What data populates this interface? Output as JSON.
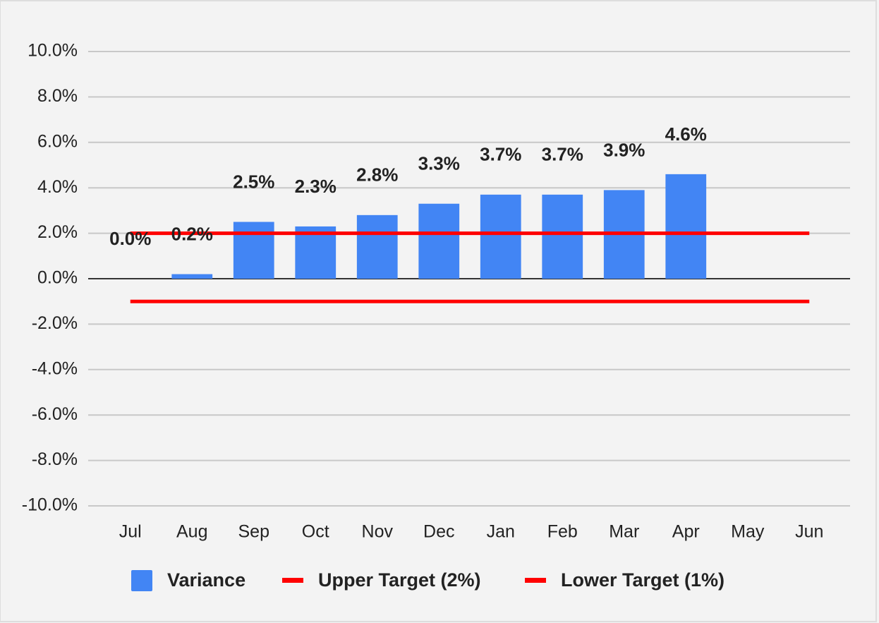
{
  "chart_data": {
    "type": "bar",
    "categories": [
      "Jul",
      "Aug",
      "Sep",
      "Oct",
      "Nov",
      "Dec",
      "Jan",
      "Feb",
      "Mar",
      "Apr",
      "May",
      "Jun"
    ],
    "series": [
      {
        "name": "Variance",
        "type": "bar",
        "color": "#4285f4",
        "values": [
          0.0,
          0.2,
          2.5,
          2.3,
          2.8,
          3.3,
          3.7,
          3.7,
          3.9,
          4.6,
          null,
          null
        ],
        "value_labels": [
          "0.0%",
          "0.2%",
          "2.5%",
          "2.3%",
          "2.8%",
          "3.3%",
          "3.7%",
          "3.7%",
          "3.9%",
          "4.6%",
          null,
          null
        ]
      },
      {
        "name": "Upper Target (2%)",
        "type": "line",
        "color": "#ff0000",
        "values": [
          2,
          2,
          2,
          2,
          2,
          2,
          2,
          2,
          2,
          2,
          2,
          2
        ]
      },
      {
        "name": "Lower Target (1%)",
        "type": "line",
        "color": "#ff0000",
        "values": [
          -1,
          -1,
          -1,
          -1,
          -1,
          -1,
          -1,
          -1,
          -1,
          -1,
          -1,
          -1
        ]
      }
    ],
    "ylim": [
      -10,
      10
    ],
    "yticks": [
      {
        "value": -10,
        "label": "-10.0%"
      },
      {
        "value": -8,
        "label": "-8.0%"
      },
      {
        "value": -6,
        "label": "-6.0%"
      },
      {
        "value": -4,
        "label": "-4.0%"
      },
      {
        "value": -2,
        "label": "-2.0%"
      },
      {
        "value": 0,
        "label": "0.0%"
      },
      {
        "value": 2,
        "label": "2.0%"
      },
      {
        "value": 4,
        "label": "4.0%"
      },
      {
        "value": 6,
        "label": "6.0%"
      },
      {
        "value": 8,
        "label": "8.0%"
      },
      {
        "value": 10,
        "label": "10.0%"
      }
    ],
    "grid": true,
    "legend": "bottom"
  }
}
